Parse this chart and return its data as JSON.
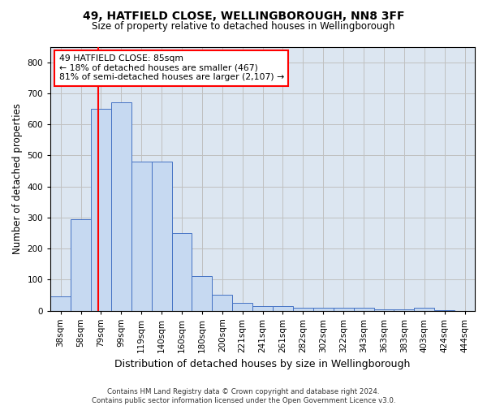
{
  "title1": "49, HATFIELD CLOSE, WELLINGBOROUGH, NN8 3FF",
  "title2": "Size of property relative to detached houses in Wellingborough",
  "xlabel": "Distribution of detached houses by size in Wellingborough",
  "ylabel": "Number of detached properties",
  "footer1": "Contains HM Land Registry data © Crown copyright and database right 2024.",
  "footer2": "Contains public sector information licensed under the Open Government Licence v3.0.",
  "annotation_title": "49 HATFIELD CLOSE: 85sqm",
  "annotation_line1": "← 18% of detached houses are smaller (467)",
  "annotation_line2": "81% of semi-detached houses are larger (2,107) →",
  "bar_labels": [
    "38sqm",
    "58sqm",
    "79sqm",
    "99sqm",
    "119sqm",
    "140sqm",
    "160sqm",
    "180sqm",
    "200sqm",
    "221sqm",
    "241sqm",
    "261sqm",
    "282sqm",
    "302sqm",
    "322sqm",
    "343sqm",
    "363sqm",
    "383sqm",
    "403sqm",
    "424sqm",
    "444sqm"
  ],
  "bar_values": [
    45,
    295,
    650,
    670,
    480,
    480,
    250,
    110,
    52,
    25,
    15,
    15,
    10,
    8,
    10,
    8,
    5,
    5,
    8,
    2,
    0
  ],
  "bar_color": "#c6d9f1",
  "bar_edge_color": "#4472c4",
  "bar_width": 1.0,
  "red_line_x": 1.88,
  "ylim": [
    0,
    850
  ],
  "background_color": "#ffffff",
  "grid_color": "#c0c0c0",
  "plot_bg_color": "#dce6f1"
}
